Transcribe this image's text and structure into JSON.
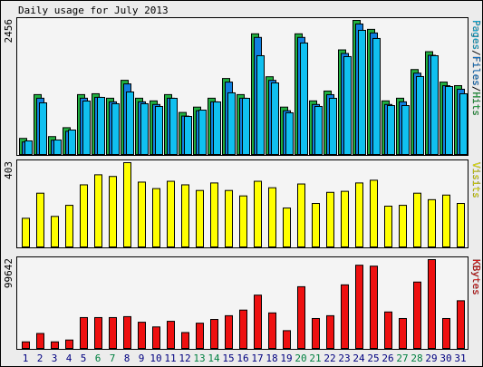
{
  "title": "Daily usage for July 2013",
  "chart_data": {
    "type": "bar",
    "categories": [
      "1",
      "2",
      "3",
      "4",
      "5",
      "6",
      "7",
      "8",
      "9",
      "10",
      "11",
      "12",
      "13",
      "14",
      "15",
      "16",
      "17",
      "18",
      "19",
      "20",
      "21",
      "22",
      "23",
      "24",
      "25",
      "26",
      "27",
      "28",
      "29",
      "30",
      "31"
    ],
    "category_colors": [
      "#000080",
      "#000080",
      "#000080",
      "#000080",
      "#000080",
      "#008040",
      "#008040",
      "#000080",
      "#000080",
      "#000080",
      "#000080",
      "#000080",
      "#008040",
      "#008040",
      "#000080",
      "#000080",
      "#000080",
      "#000080",
      "#000080",
      "#008040",
      "#008040",
      "#000080",
      "#000080",
      "#000080",
      "#000080",
      "#000080",
      "#008040",
      "#008040",
      "#000080",
      "#000080",
      "#000080"
    ],
    "legend_separator": "/",
    "panels": [
      {
        "ylim": [
          0,
          2456
        ],
        "yticks": [
          2456
        ],
        "series": [
          {
            "name": "Hits",
            "color": "#20b040",
            "values": [
              295,
              1097,
              328,
              491,
              1097,
              1113,
              1031,
              1359,
              1031,
              982,
              1097,
              770,
              868,
              1031,
              1392,
              1097,
              2210,
              1424,
              868,
              2210,
              982,
              1162,
              1916,
              2456,
              2292,
              982,
              1031,
              1556,
              1883,
              1326,
              1261
            ]
          },
          {
            "name": "Files",
            "color": "#1080e0",
            "values": [
              229,
              1031,
              262,
              425,
              1031,
              1047,
              965,
              1293,
              965,
              916,
              1031,
              704,
              802,
              965,
              1326,
              1031,
              2144,
              1358,
              802,
              2144,
              916,
              1096,
              1850,
              2390,
              2226,
              916,
              965,
              1490,
              1817,
              1260,
              1195
            ]
          },
          {
            "name": "Pages",
            "color": "#10c0f0",
            "values": [
              249,
              946,
              266,
              448,
              979,
              1046,
              930,
              1145,
              930,
              880,
              1029,
              697,
              813,
              963,
              1129,
              1029,
              1809,
              1311,
              764,
              2042,
              880,
              1029,
              1793,
              2274,
              2125,
              896,
              896,
              1428,
              1809,
              1245,
              1112
            ]
          }
        ],
        "legend_order": [
          2,
          1,
          0
        ]
      },
      {
        "ylim": [
          0,
          403
        ],
        "yticks": [
          403
        ],
        "series": [
          {
            "name": "Visits",
            "color": "#ffff00",
            "values": [
              137,
              257,
              146,
              199,
              297,
              345,
              337,
              403,
              310,
              279,
              314,
              297,
              270,
              306,
              270,
              244,
              314,
              283,
              186,
              301,
              208,
              261,
              266,
              306,
              319,
              195,
              199,
              257,
              226,
              248,
              208
            ]
          }
        ],
        "legend_order": [
          0
        ]
      },
      {
        "ylim": [
          0,
          99642
        ],
        "yticks": [
          99642
        ],
        "series": [
          {
            "name": "KBytes",
            "color": "#ee1010",
            "values": [
              7343,
              16784,
              7343,
              9441,
              34617,
              34617,
              34617,
              35666,
              29372,
              24127,
              30421,
              17833,
              28323,
              32519,
              36715,
              43009,
              59793,
              39862,
              19931,
              69234,
              33568,
              36715,
              71332,
              93361,
              92312,
              40911,
              33568,
              74479,
              99642,
              33568,
              53499
            ]
          }
        ],
        "legend_order": [
          0
        ]
      }
    ]
  }
}
